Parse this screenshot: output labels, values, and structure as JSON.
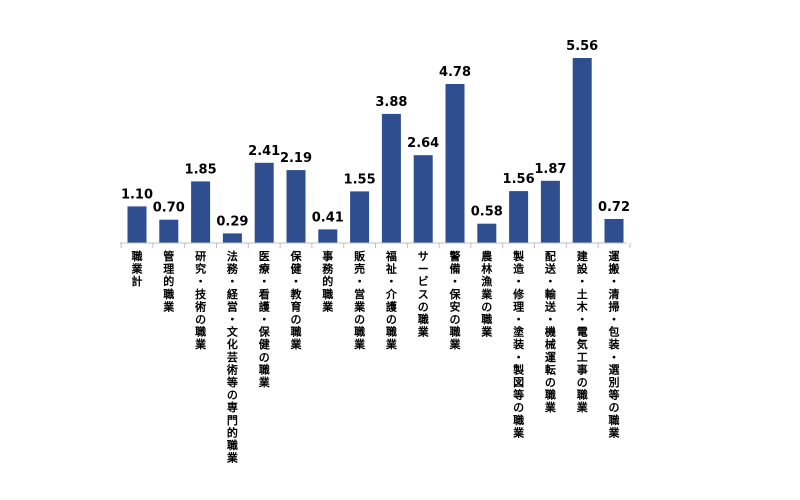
{
  "chart_data": {
    "type": "bar",
    "categories": [
      "職業計",
      "管理的職業",
      "研究・技術の職業",
      "法務・経営・文化芸術等の専門的職業",
      "医療・看護・保健の職業",
      "保健・教育の職業",
      "事務的職業",
      "販売・営業の職業",
      "福祉・介護の職業",
      "サービスの職業",
      "警備・保安の職業",
      "農林漁業の職業",
      "製造・修理・塗装・製図等の職業",
      "配送・輸送・機械運転の職業",
      "建設・土木・電気工事の職業",
      "運搬・清掃・包装・選別等の職業"
    ],
    "values": [
      1.1,
      0.7,
      1.85,
      0.29,
      2.41,
      2.19,
      0.41,
      1.55,
      3.88,
      2.64,
      4.78,
      0.58,
      1.56,
      1.87,
      5.56,
      0.72
    ],
    "value_labels": [
      "1.10",
      "0.70",
      "1.85",
      "0.29",
      "2.41",
      "2.19",
      "0.41",
      "1.55",
      "3.88",
      "2.64",
      "4.78",
      "0.58",
      "1.56",
      "1.87",
      "5.56",
      "0.72"
    ],
    "title": "",
    "xlabel": "",
    "ylabel": "",
    "ylim": [
      0,
      5.56
    ],
    "grid": false,
    "legend": "none",
    "bar_color": "#2E4E8F"
  }
}
